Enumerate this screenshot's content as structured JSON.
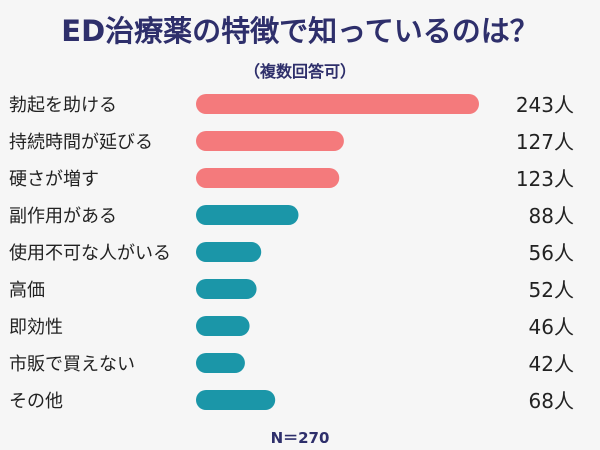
{
  "chart_data": {
    "type": "bar",
    "title": "ED治療薬の特徴で知っているのは？",
    "subtitle": "（複数回答可）",
    "categories": [
      "勃起を助ける",
      "持続時間が延びる",
      "硬さが増す",
      "副作用がある",
      "使用不可な人がいる",
      "高価",
      "即効性",
      "市販で買えない",
      "その他"
    ],
    "values": [
      243,
      127,
      123,
      88,
      56,
      52,
      46,
      42,
      68
    ],
    "value_labels": [
      "243人",
      "127人",
      "123人",
      "88人",
      "56人",
      "52人",
      "46人",
      "42人",
      "68人"
    ],
    "note": "N＝270",
    "xlim": [
      0,
      243
    ],
    "colors": {
      "top3": "#f47a7c",
      "rest": "#1b96a8",
      "title": "#2e2f6b"
    }
  }
}
